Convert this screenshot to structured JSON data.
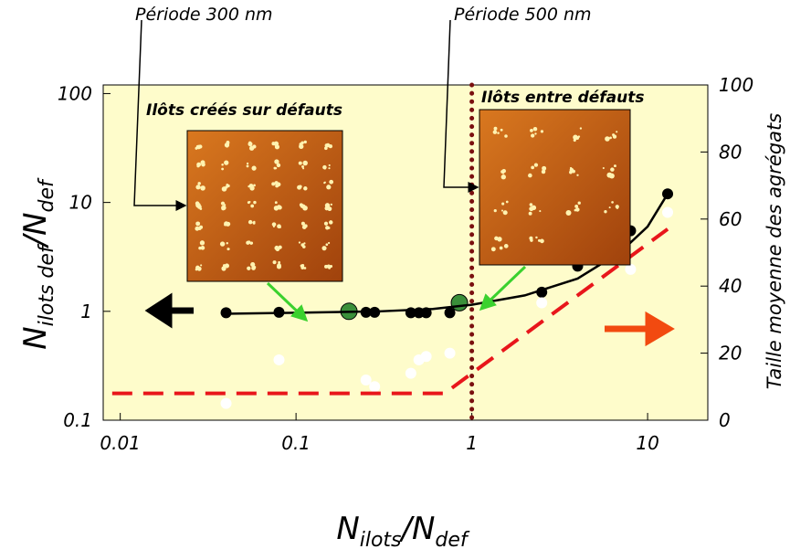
{
  "chart_data": {
    "type": "scatter",
    "xscale": "log",
    "yscale": "log",
    "xlim": [
      0.008,
      22
    ],
    "xticks": [
      0.01,
      0.1,
      1,
      10
    ],
    "ylim": [
      0.1,
      120
    ],
    "yticks": [
      0.1,
      1,
      10,
      100
    ],
    "y2lim": [
      0,
      100
    ],
    "y2ticks": [
      0,
      20,
      40,
      60,
      80,
      100
    ],
    "xlabel": [
      "N",
      "ilots",
      "/N",
      "def"
    ],
    "ylabel": [
      "N",
      "ilots def",
      "/N",
      "def"
    ],
    "y2label": "Taille moyenne des agrégats",
    "background": "#fefccb",
    "series": [
      {
        "mode": "markers",
        "color": "#000000",
        "x": [
          0.04,
          0.08,
          0.25,
          0.28,
          0.45,
          0.5,
          0.55,
          0.75,
          2.5,
          4,
          8,
          13
        ],
        "values": [
          0.97,
          0.98,
          0.98,
          0.98,
          0.97,
          0.97,
          0.97,
          0.97,
          1.5,
          2.6,
          5.5,
          12
        ]
      },
      {
        "mode": "markers",
        "color": "#3a8f3a",
        "x": [
          0.2,
          0.85
        ],
        "values": [
          1,
          1.2
        ]
      },
      {
        "mode": "line",
        "color": "#000000",
        "x": [
          0.04,
          0.1,
          0.3,
          0.6,
          1,
          2,
          4,
          7,
          10,
          13
        ],
        "values": [
          0.95,
          0.97,
          1.0,
          1.05,
          1.15,
          1.4,
          2,
          3.5,
          6,
          12
        ]
      },
      {
        "mode": "markers",
        "color": "#ffffff",
        "axis": "y2",
        "x": [
          0.04,
          0.08,
          0.25,
          0.28,
          0.45,
          0.5,
          0.55,
          0.75,
          2.5,
          8,
          13
        ],
        "values": [
          5,
          18,
          12,
          10,
          14,
          18,
          19,
          20,
          35,
          45,
          62
        ]
      },
      {
        "mode": "dashed",
        "color": "#e8161b",
        "axis": "y2",
        "x": [
          0.009,
          0.7,
          13
        ],
        "values": [
          8,
          8,
          57
        ]
      }
    ],
    "vlines": [
      {
        "x": 1,
        "color": "#7a1010"
      }
    ],
    "annotations": [
      "Période 300 nm",
      "Période 500 nm",
      "Ilôts créés sur défauts",
      "Ilôts entre défauts"
    ]
  }
}
